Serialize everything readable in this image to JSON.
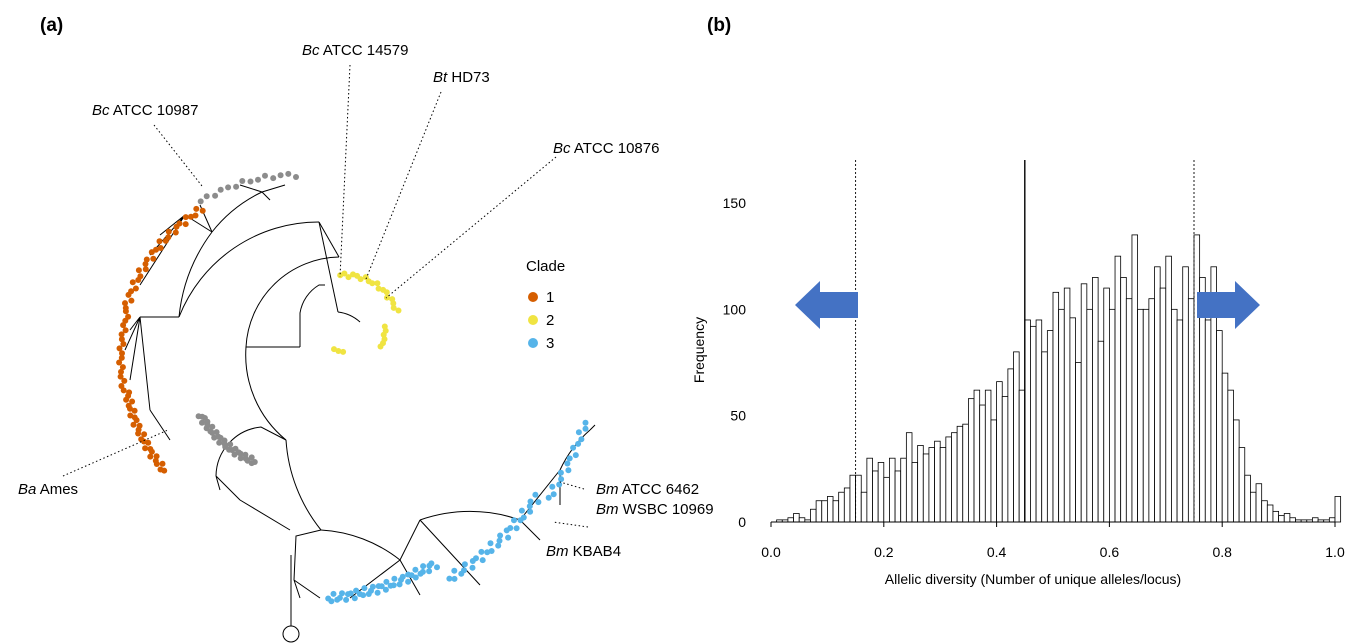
{
  "panel_a": {
    "label": "(a)",
    "annotations": [
      {
        "id": "bc10987",
        "species": "Bc",
        "strain": "ATCC 10987"
      },
      {
        "id": "bc14579",
        "species": "Bc",
        "strain": "ATCC 14579"
      },
      {
        "id": "btHD73",
        "species": "Bt",
        "strain": "HD73"
      },
      {
        "id": "bc10876",
        "species": "Bc",
        "strain": "ATCC 10876"
      },
      {
        "id": "baAmes",
        "species": "Ba",
        "strain": "Ames"
      },
      {
        "id": "bm6462",
        "species": "Bm",
        "strain": "ATCC 6462"
      },
      {
        "id": "bm10969",
        "species": "Bm",
        "strain": "WSBC 10969"
      },
      {
        "id": "bmKBAB4",
        "species": "Bm",
        "strain": "KBAB4"
      }
    ],
    "legend": {
      "title": "Clade",
      "items": [
        {
          "label": "1",
          "color": "#D55E00"
        },
        {
          "label": "2",
          "color": "#F0E442"
        },
        {
          "label": "3",
          "color": "#56B4E9"
        }
      ],
      "other_color": "#8c8c8c"
    }
  },
  "panel_b": {
    "label": "(b)",
    "arrow_color": "#4472C4",
    "chart_data": {
      "type": "bar",
      "xlabel": "Allelic diversity (Number of unique alleles/locus)",
      "ylabel": "Frequency",
      "xlim": [
        0.0,
        1.0
      ],
      "ylim": [
        0,
        165
      ],
      "xticks": [
        "0.0",
        "0.2",
        "0.4",
        "0.6",
        "0.8",
        "1.0"
      ],
      "yticks": [
        "0",
        "50",
        "100",
        "150"
      ],
      "bin_width": 0.01,
      "bin_start": 0.01,
      "vlines": [
        {
          "x": 0.15,
          "style": "dotted"
        },
        {
          "x": 0.45,
          "style": "solid"
        },
        {
          "x": 0.75,
          "style": "dotted"
        }
      ],
      "values": [
        1,
        1,
        2,
        4,
        2,
        1,
        6,
        10,
        10,
        12,
        10,
        14,
        16,
        22,
        22,
        14,
        30,
        24,
        28,
        21,
        30,
        24,
        30,
        42,
        28,
        36,
        32,
        35,
        38,
        35,
        40,
        42,
        45,
        46,
        58,
        62,
        55,
        62,
        48,
        66,
        59,
        72,
        80,
        62,
        95,
        92,
        95,
        80,
        90,
        108,
        100,
        110,
        96,
        75,
        112,
        100,
        115,
        85,
        110,
        100,
        125,
        115,
        105,
        135,
        100,
        100,
        105,
        120,
        110,
        125,
        100,
        95,
        120,
        105,
        135,
        115,
        95,
        120,
        90,
        70,
        62,
        48,
        35,
        22,
        14,
        18,
        10,
        8,
        5,
        3,
        4,
        2,
        1,
        1,
        1,
        2,
        1,
        1,
        2,
        12
      ]
    }
  }
}
